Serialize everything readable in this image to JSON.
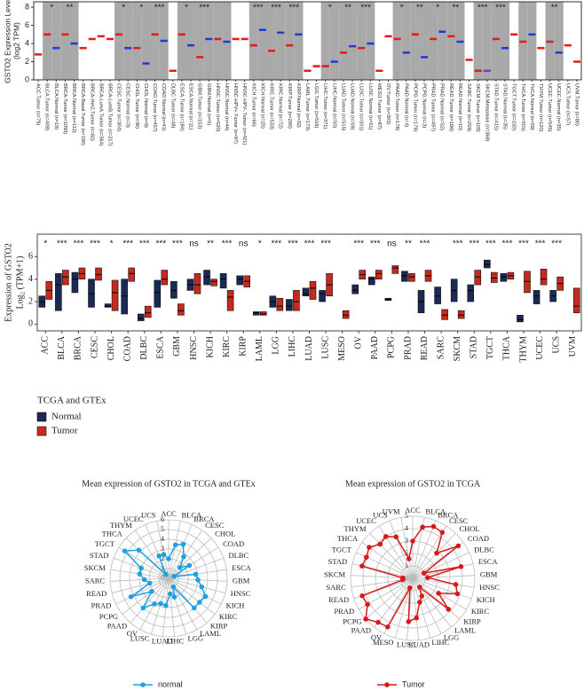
{
  "chart_data": [
    {
      "type": "strip",
      "ylabel": "GSTO2 Expression Level",
      "ylabel2": "(log2 TPM)",
      "categories": [
        "ACC.Tumor (n=79)",
        "BLCA.Tumor (n=408)",
        "BLCA.Normal (n=19)",
        "BRCA.Tumor (n=1093)",
        "BRCA.Normal (n=112)",
        "BRCA-Basal.Tumor (n=190)",
        "BRCA-Her2.Tumor (n=82)",
        "BRCA-LumA.Tumor (n=564)",
        "BRCA-LumB.Tumor (n=217)",
        "CESC.Tumor (n=304)",
        "CESC.Normal (n=3)",
        "CHOL.Tumor (n=36)",
        "CHOL.Normal (n=9)",
        "COAD.Tumor (n=457)",
        "COAD.Normal (n=41)",
        "DLBC.Tumor (n=48)",
        "ESCA.Tumor (n=184)",
        "ESCA.Normal (n=11)",
        "GBM.Tumor (n=153)",
        "GBM.Normal (n=5)",
        "HNSC.Tumor (n=520)",
        "HNSC.Normal (n=44)",
        "HNSC-HPV+.Tumor (n=97)",
        "HNSC-HPV-.Tumor (n=421)",
        "KICH.Tumor (n=66)",
        "KICH.Normal (n=25)",
        "KIRC.Tumor (n=533)",
        "KIRC.Normal (n=72)",
        "KIRP.Tumor (n=290)",
        "KIRP.Normal (n=32)",
        "LAML.Tumor (n=173)",
        "LGG.Tumor (n=516)",
        "LIHC.Tumor (n=371)",
        "LIHC.Normal (n=50)",
        "LUAD.Tumor (n=515)",
        "LUAD.Normal (n=59)",
        "LUSC.Tumor (n=501)",
        "LUSC.Normal (n=51)",
        "MESO.Tumor (n=87)",
        "OV.Tumor (n=303)",
        "PAAD.Tumor (n=178)",
        "PAAD.Normal (n=4)",
        "PCPG.Tumor (n=179)",
        "PCPG.Normal (n=3)",
        "PRAD.Tumor (n=497)",
        "PRAD.Normal (n=52)",
        "READ.Tumor (n=166)",
        "READ.Normal (n=10)",
        "SARC.Tumor (n=259)",
        "SKCM.Tumor (n=103)",
        "SKCM.Metastasis (n=368)",
        "STAD.Tumor (n=415)",
        "STAD.Normal (n=35)",
        "TGCT.Tumor (n=150)",
        "THCA.Tumor (n=501)",
        "THCA.Normal (n=59)",
        "THYM.Tumor (n=120)",
        "UCEC.Tumor (n=545)",
        "UCEC.Normal (n=35)",
        "UCS.Tumor (n=57)",
        "UVM.Tumor (n=80)"
      ],
      "medians": [
        2.8,
        5,
        3.5,
        5,
        4,
        3.5,
        4.5,
        4.8,
        4.5,
        5,
        3.5,
        3.5,
        1.8,
        5,
        4.3,
        1,
        5,
        3.8,
        2.5,
        4.5,
        4.5,
        4.2,
        4.5,
        4.5,
        3.8,
        5.5,
        3.2,
        5.2,
        3.8,
        5,
        1,
        1.5,
        1.5,
        2,
        3,
        3.7,
        3.5,
        4,
        1,
        4.8,
        4.5,
        3,
        5,
        2.5,
        4.5,
        5.3,
        4.8,
        4.2,
        2.2,
        1,
        1,
        4.5,
        3.5,
        5,
        4.2,
        5,
        3.5,
        4.2,
        3,
        3.8,
        2
      ],
      "colors": [
        "#e41a1c",
        "#e41a1c",
        "#1f3bd6",
        "#e41a1c",
        "#1f3bd6",
        "#e41a1c",
        "#e41a1c",
        "#e41a1c",
        "#e41a1c",
        "#e41a1c",
        "#1f3bd6",
        "#e41a1c",
        "#1f3bd6",
        "#e41a1c",
        "#1f3bd6",
        "#e41a1c",
        "#e41a1c",
        "#1f3bd6",
        "#e41a1c",
        "#1f3bd6",
        "#e41a1c",
        "#1f3bd6",
        "#e41a1c",
        "#e41a1c",
        "#e41a1c",
        "#1f3bd6",
        "#e41a1c",
        "#1f3bd6",
        "#e41a1c",
        "#1f3bd6",
        "#e41a1c",
        "#e41a1c",
        "#e41a1c",
        "#1f3bd6",
        "#e41a1c",
        "#1f3bd6",
        "#e41a1c",
        "#1f3bd6",
        "#e41a1c",
        "#e41a1c",
        "#e41a1c",
        "#1f3bd6",
        "#e41a1c",
        "#1f3bd6",
        "#e41a1c",
        "#1f3bd6",
        "#e41a1c",
        "#1f3bd6",
        "#e41a1c",
        "#e41a1c",
        "#8b2be2",
        "#e41a1c",
        "#1f3bd6",
        "#e41a1c",
        "#e41a1c",
        "#1f3bd6",
        "#e41a1c",
        "#e41a1c",
        "#1f3bd6",
        "#e41a1c",
        "#e41a1c"
      ],
      "shaded": [
        false,
        true,
        true,
        true,
        true,
        false,
        false,
        false,
        false,
        true,
        true,
        true,
        true,
        true,
        true,
        false,
        true,
        true,
        true,
        true,
        true,
        true,
        false,
        false,
        true,
        true,
        true,
        true,
        true,
        true,
        false,
        false,
        true,
        true,
        true,
        true,
        true,
        true,
        false,
        false,
        true,
        true,
        true,
        true,
        true,
        true,
        true,
        true,
        false,
        true,
        true,
        true,
        true,
        false,
        true,
        true,
        false,
        true,
        true,
        false,
        false
      ],
      "annotations": [
        {
          "at": 1,
          "label": "*"
        },
        {
          "at": 3,
          "label": "**"
        },
        {
          "at": 9,
          "label": "*"
        },
        {
          "at": 11,
          "label": "*"
        },
        {
          "at": 13,
          "label": "***"
        },
        {
          "at": 16,
          "label": "*"
        },
        {
          "at": 18,
          "label": "***"
        },
        {
          "at": 24,
          "label": "***"
        },
        {
          "at": 26,
          "label": "***"
        },
        {
          "at": 28,
          "label": "***"
        },
        {
          "at": 32,
          "label": "*"
        },
        {
          "at": 34,
          "label": "**"
        },
        {
          "at": 36,
          "label": "***"
        },
        {
          "at": 40,
          "label": "*"
        },
        {
          "at": 42,
          "label": "**"
        },
        {
          "at": 44,
          "label": "*"
        },
        {
          "at": 46,
          "label": "**"
        },
        {
          "at": 49,
          "label": "***"
        },
        {
          "at": 51,
          "label": "***"
        },
        {
          "at": 57,
          "label": "**"
        }
      ],
      "ylim": [
        0,
        8.6
      ],
      "yticks": [
        0,
        2,
        4,
        6,
        8
      ]
    },
    {
      "type": "box",
      "ylabel": "Expression of GSTO2",
      "ylabel2": "Log₂ (TPM+1)",
      "categories": [
        "ACC",
        "BLCA",
        "BRCA",
        "CESC",
        "CHOL",
        "COAD",
        "DLBC",
        "ESCA",
        "GBM",
        "HNSC",
        "KICH",
        "KIRC",
        "KIRP",
        "LAML",
        "LGG",
        "LIHC",
        "LUAD",
        "LUSC",
        "MESO",
        "OV",
        "PAAD",
        "PCPG",
        "PRAD",
        "READ",
        "SARC",
        "SKCM",
        "STAD",
        "TGCT",
        "THCA",
        "THYM",
        "UCEC",
        "UCS",
        "UVM"
      ],
      "significance": [
        "*",
        "***",
        "***",
        "***",
        "*",
        "***",
        "***",
        "***",
        "***",
        "ns",
        "**",
        "***",
        "ns",
        "*",
        "***",
        "***",
        "***",
        "***",
        null,
        "***",
        "***",
        "ns",
        "**",
        "***",
        null,
        "***",
        "***",
        "***",
        "***",
        "***",
        "***",
        "***",
        null
      ],
      "legend_title": "TCGA and GTEx",
      "series": [
        {
          "name": "Normal",
          "color": "#1b2a55",
          "q1": [
            1.5,
            1.2,
            2.8,
            1.5,
            1.5,
            0.9,
            0.3,
            1.5,
            2.3,
            3.0,
            3.5,
            3.2,
            3.5,
            0.8,
            1.5,
            1.2,
            2.5,
            2.0,
            null,
            2.7,
            3.5,
            2.1,
            3.8,
            1.0,
            1.8,
            2.0,
            2.0,
            5.0,
            3.8,
            0.2,
            1.8,
            2.0,
            null
          ],
          "median": [
            2.0,
            3.5,
            4.0,
            2.7,
            1.6,
            2.5,
            0.5,
            2.8,
            3.0,
            3.5,
            4.2,
            4.0,
            4.0,
            1.0,
            2.0,
            1.6,
            2.7,
            2.7,
            null,
            3.0,
            4.0,
            2.2,
            4.3,
            2.0,
            2.5,
            3.0,
            3.0,
            5.3,
            4.2,
            0.4,
            2.5,
            2.5,
            null
          ],
          "q3": [
            2.5,
            4.5,
            4.6,
            4.0,
            1.8,
            4.0,
            0.9,
            3.9,
            3.8,
            4.0,
            4.8,
            4.5,
            4.3,
            1.1,
            2.5,
            2.2,
            3.2,
            3.0,
            null,
            3.5,
            4.2,
            2.3,
            4.7,
            3.0,
            3.3,
            4.0,
            3.5,
            5.7,
            4.5,
            0.8,
            3.0,
            3.0,
            null
          ]
        },
        {
          "name": "Tumor",
          "color": "#c62a1f",
          "q1": [
            2.2,
            3.5,
            4.0,
            3.9,
            1.2,
            3.8,
            0.6,
            3.5,
            0.8,
            2.7,
            3.4,
            1.2,
            3.3,
            0.8,
            1.2,
            1.2,
            2.2,
            2.5,
            0.5,
            4.0,
            4.0,
            4.5,
            3.8,
            3.8,
            0.4,
            0.5,
            3.5,
            3.7,
            4.0,
            2.8,
            3.5,
            3.0,
            1.0
          ],
          "median": [
            3.0,
            4.2,
            4.5,
            4.4,
            2.8,
            4.5,
            1.0,
            4.0,
            1.2,
            3.5,
            3.8,
            2.4,
            3.8,
            0.9,
            1.6,
            2.0,
            3.2,
            3.5,
            0.8,
            4.4,
            4.5,
            5.0,
            4.2,
            4.3,
            0.8,
            0.8,
            4.2,
            4.1,
            4.3,
            3.8,
            4.0,
            3.6,
            1.6
          ],
          "q3": [
            3.8,
            4.8,
            5.0,
            5.0,
            3.9,
            5.0,
            1.6,
            4.8,
            1.8,
            4.5,
            4.0,
            3.0,
            4.3,
            1.1,
            2.3,
            3.0,
            3.8,
            4.5,
            1.2,
            4.8,
            4.8,
            5.2,
            4.5,
            4.8,
            1.3,
            1.2,
            4.8,
            4.6,
            4.6,
            4.7,
            4.9,
            4.2,
            3.2
          ]
        }
      ],
      "ylim": [
        -0.6,
        8
      ],
      "yticks": [
        0,
        2,
        4,
        6
      ]
    },
    {
      "type": "radar",
      "title": "Mean expression of GSTO2 in TCGA and GTEx",
      "categories": [
        "ACC",
        "BLCA",
        "BRCA",
        "CESC",
        "CHOL",
        "COAD",
        "DLBC",
        "ESCA",
        "GBM",
        "HNSC",
        "KICH",
        "KIRC",
        "KIRP",
        "LAML",
        "LGG",
        "LIHC",
        "LUAD",
        "LUSC",
        "OV",
        "PAAD",
        "PCPG",
        "PRAD",
        "READ",
        "SARC",
        "SKCM",
        "STAD",
        "TGCT",
        "THCA",
        "THYM",
        "UCEC",
        "UCS"
      ],
      "series": [
        {
          "name": "normal",
          "color": "#1ea1e0",
          "values": [
            2,
            3.5,
            3.8,
            2.7,
            1.6,
            2.5,
            0.6,
            2.8,
            3,
            3.5,
            4.2,
            4,
            4,
            1,
            2,
            1.6,
            2.8,
            2.7,
            3,
            4,
            2.2,
            4.3,
            2,
            2.5,
            3,
            3,
            5.3,
            4.2,
            0.5,
            2.5,
            2.5
          ]
        }
      ],
      "rlim": [
        0,
        6
      ],
      "rticks": [
        0,
        1,
        2,
        3,
        4,
        5,
        6
      ]
    },
    {
      "type": "radar",
      "title": "Mean expression of GSTO2 in TCGA",
      "categories": [
        "ACC",
        "BLCA",
        "BRCA",
        "CESC",
        "CHOL",
        "COAD",
        "DLBC",
        "ESCA",
        "GBM",
        "HNSC",
        "KICH",
        "KIRC",
        "KIRP",
        "LAML",
        "LGG",
        "LIHC",
        "LUAD",
        "LUSC",
        "MESO",
        "OV",
        "PAAD",
        "PCPG",
        "PRAD",
        "READ",
        "SARC",
        "SKCM",
        "STAD",
        "TGCT",
        "THCA",
        "THYM",
        "UCEC",
        "UCS",
        "UVM"
      ],
      "series": [
        {
          "name": "Tumor",
          "color": "#d7191c",
          "values": [
            3,
            4.2,
            4.5,
            4.4,
            2.8,
            4.5,
            1,
            4,
            1.2,
            3.5,
            3.8,
            2.4,
            3.8,
            0.9,
            1.6,
            2,
            3.2,
            3.5,
            0.8,
            4.4,
            4.5,
            5,
            4.2,
            4.3,
            0.8,
            0.8,
            4.2,
            4.1,
            4.3,
            3.8,
            4,
            3.6,
            1.6
          ]
        }
      ],
      "rlim": [
        0,
        5
      ],
      "rticks": [
        0,
        1,
        2,
        3,
        4,
        5
      ]
    }
  ]
}
